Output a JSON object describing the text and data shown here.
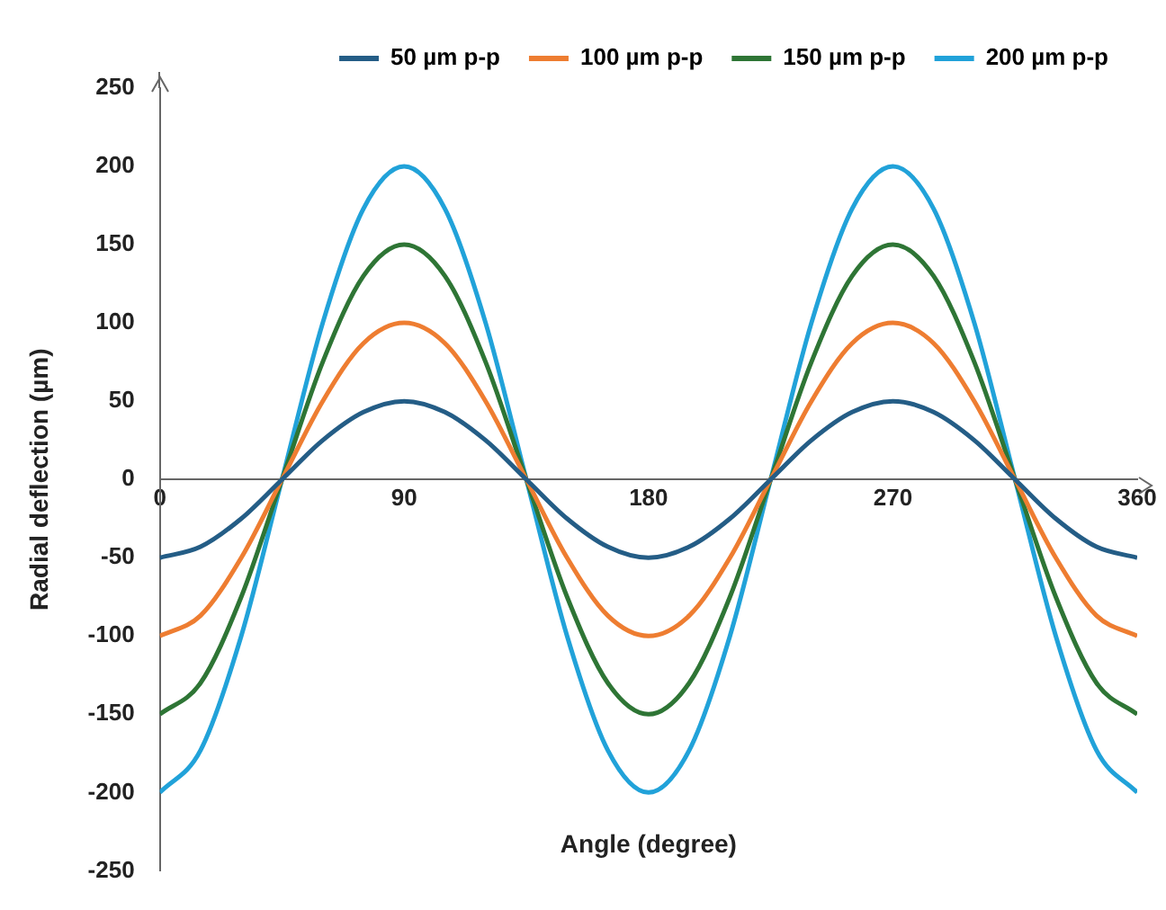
{
  "chart_data": {
    "type": "line",
    "xlabel": "Angle (degree)",
    "ylabel": "Radial deflection (µm)",
    "x": [
      0,
      15,
      30,
      45,
      60,
      75,
      90,
      105,
      120,
      135,
      150,
      165,
      180,
      195,
      210,
      225,
      240,
      255,
      270,
      285,
      300,
      315,
      330,
      345,
      360
    ],
    "series": [
      {
        "name": "50 µm p-p",
        "color": "#245d86",
        "values": [
          -50,
          -43,
          -25,
          0,
          25,
          43,
          50,
          43,
          25,
          0,
          -25,
          -43,
          -50,
          -43,
          -25,
          0,
          25,
          43,
          50,
          43,
          25,
          0,
          -25,
          -43,
          -50
        ]
      },
      {
        "name": "100 µm p-p",
        "color": "#ee7d31",
        "values": [
          -100,
          -87,
          -50,
          0,
          50,
          87,
          100,
          87,
          50,
          0,
          -50,
          -87,
          -100,
          -87,
          -50,
          0,
          50,
          87,
          100,
          87,
          50,
          0,
          -50,
          -87,
          -100
        ]
      },
      {
        "name": "150 µm p-p",
        "color": "#2e7535",
        "values": [
          -150,
          -130,
          -75,
          0,
          75,
          130,
          150,
          130,
          75,
          0,
          -75,
          -130,
          -150,
          -130,
          -75,
          0,
          75,
          130,
          150,
          130,
          75,
          0,
          -75,
          -130,
          -150
        ]
      },
      {
        "name": "200 µm p-p",
        "color": "#21a2d9",
        "values": [
          -200,
          -173,
          -100,
          0,
          100,
          173,
          200,
          173,
          100,
          0,
          -100,
          -173,
          -200,
          -173,
          -100,
          0,
          100,
          173,
          200,
          173,
          100,
          0,
          -100,
          -173,
          -200
        ]
      }
    ],
    "xlim": [
      0,
      360
    ],
    "xticks": [
      0,
      90,
      180,
      270,
      360
    ],
    "ylim": [
      -250,
      250
    ],
    "yticks": [
      -250,
      -200,
      -150,
      -100,
      -50,
      0,
      50,
      100,
      150,
      200,
      250
    ],
    "grid": false,
    "legend": "top",
    "marker": "none",
    "line_style": "solid"
  }
}
